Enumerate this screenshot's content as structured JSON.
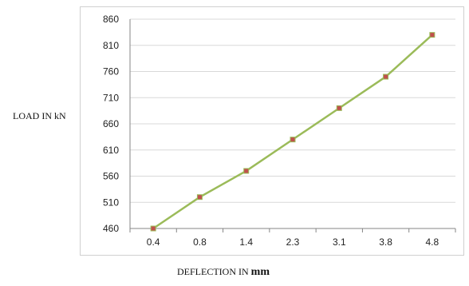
{
  "chart_data": {
    "type": "line",
    "categories": [
      "0.4",
      "0.8",
      "1.4",
      "2.3",
      "3.1",
      "3.8",
      "4.8"
    ],
    "series": [
      {
        "values": [
          460,
          520,
          570,
          630,
          690,
          750,
          830
        ]
      }
    ],
    "y_ticks": [
      "460",
      "510",
      "560",
      "610",
      "660",
      "710",
      "760",
      "810",
      "860"
    ],
    "ylim": [
      460,
      860
    ],
    "ylabel": "LOAD IN kN",
    "xlabel_text": "DEFLECTION IN",
    "xlabel_unit": "mm",
    "grid": "horizontal",
    "colors": {
      "line": "#9bbb59",
      "marker": "#c0504d",
      "grid": "#d9d9d9",
      "axis": "#868686"
    }
  }
}
